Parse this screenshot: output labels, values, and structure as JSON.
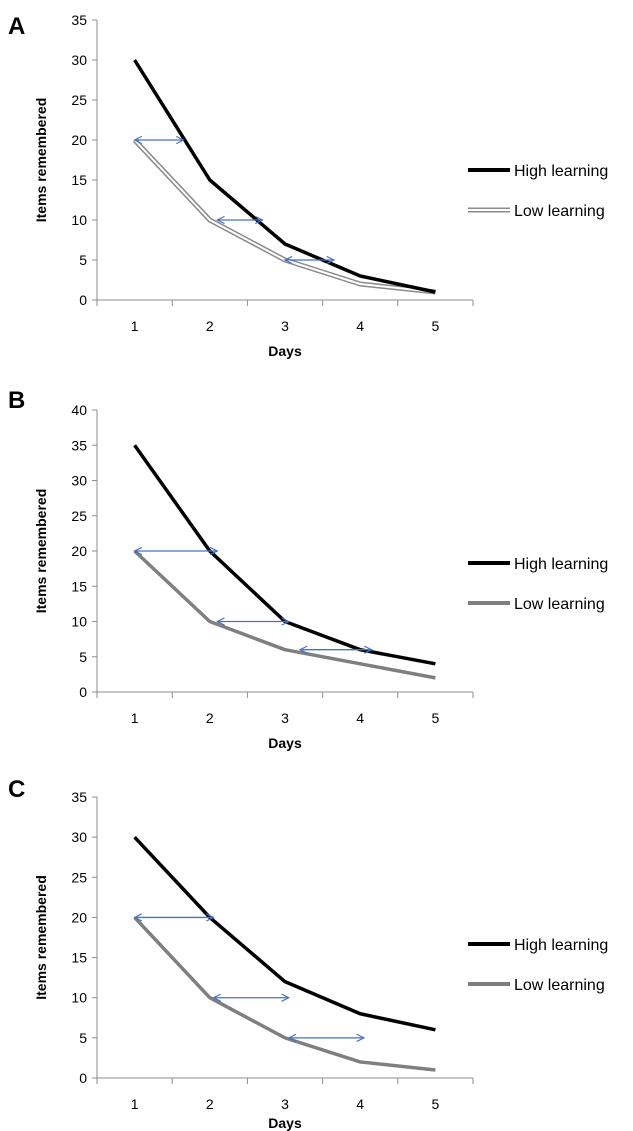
{
  "colors": {
    "high": "#000000",
    "low_outer": "#8c8c8c",
    "low_inner": "#ffffff",
    "low_solid": "#7f7f7f",
    "arrow": "#4472c4",
    "axis": "#8c8c8c"
  },
  "chart_data": [
    {
      "type": "line",
      "panel": "A",
      "xlabel": "Days",
      "ylabel": "Items remembered",
      "categories": [
        "1",
        "2",
        "3",
        "4",
        "5"
      ],
      "ylim": [
        0,
        35
      ],
      "yticks": [
        "0",
        "5",
        "10",
        "15",
        "20",
        "25",
        "30",
        "35"
      ],
      "low_style": "outlined",
      "series": [
        {
          "name": "High learning",
          "values": [
            30,
            15,
            7,
            3,
            1
          ]
        },
        {
          "name": "Low learning",
          "values": [
            20,
            10,
            5,
            2,
            1
          ]
        }
      ],
      "arrows": [
        {
          "y": 20,
          "x1": 1.0,
          "x2": 1.65
        },
        {
          "y": 10,
          "x1": 2.1,
          "x2": 2.7
        },
        {
          "y": 5,
          "x1": 3.0,
          "x2": 3.65
        }
      ],
      "legend_position": "right"
    },
    {
      "type": "line",
      "panel": "B",
      "xlabel": "Days",
      "ylabel": "Items remembered",
      "categories": [
        "1",
        "2",
        "3",
        "4",
        "5"
      ],
      "ylim": [
        0,
        40
      ],
      "yticks": [
        "0",
        "5",
        "10",
        "15",
        "20",
        "25",
        "30",
        "35",
        "40"
      ],
      "low_style": "solid",
      "series": [
        {
          "name": "High learning",
          "values": [
            35,
            20,
            10,
            6,
            4
          ]
        },
        {
          "name": "Low learning",
          "values": [
            20,
            10,
            6,
            4,
            2
          ]
        }
      ],
      "arrows": [
        {
          "y": 20,
          "x1": 1.0,
          "x2": 2.1
        },
        {
          "y": 10,
          "x1": 2.1,
          "x2": 3.05
        },
        {
          "y": 6,
          "x1": 3.2,
          "x2": 4.15
        }
      ],
      "legend_position": "right"
    },
    {
      "type": "line",
      "panel": "C",
      "xlabel": "Days",
      "ylabel": "Items remembered",
      "categories": [
        "1",
        "2",
        "3",
        "4",
        "5"
      ],
      "ylim": [
        0,
        35
      ],
      "yticks": [
        "0",
        "5",
        "10",
        "15",
        "20",
        "25",
        "30",
        "35"
      ],
      "low_style": "solid",
      "series": [
        {
          "name": "High learning",
          "values": [
            30,
            20,
            12,
            8,
            6
          ]
        },
        {
          "name": "Low learning",
          "values": [
            20,
            10,
            5,
            2,
            1
          ]
        }
      ],
      "arrows": [
        {
          "y": 20,
          "x1": 1.0,
          "x2": 2.05
        },
        {
          "y": 10,
          "x1": 2.05,
          "x2": 3.05
        },
        {
          "y": 5,
          "x1": 3.05,
          "x2": 4.05
        }
      ],
      "legend_position": "right"
    }
  ]
}
